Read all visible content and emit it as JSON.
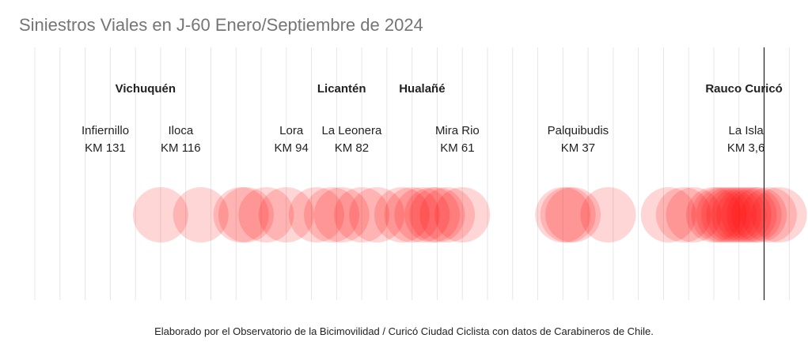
{
  "title": "Siniestros Viales en J-60 Enero/Septiembre de 2024",
  "caption": "Elaborado por el Observatorio de la Bicimovilidad / Curicó Ciudad Ciclista con datos de Carabineros de Chile.",
  "colors": {
    "bubble": "#ff0000",
    "grid": "#e6e6e6",
    "marker_line": "#000000",
    "title": "#757575",
    "label": "#222222"
  },
  "chart_data": {
    "type": "scatter",
    "xlabel": "",
    "ylabel": "",
    "x_unit": "KM",
    "x_axis_direction": "reversed",
    "xlim": [
      148,
      -7
    ],
    "grid": true,
    "legend": "none",
    "reference_line_km": 0,
    "communes": [
      {
        "name": "Vichuquén",
        "km": 123
      },
      {
        "name": "Licantén",
        "km": 84
      },
      {
        "name": "Hualañé",
        "km": 68
      },
      {
        "name": "Rauco Curicó",
        "km": 4
      }
    ],
    "places": [
      {
        "name": "Infiernillo",
        "km_label": "KM 131",
        "km": 131
      },
      {
        "name": "Iloca",
        "km_label": "KM 116",
        "km": 116
      },
      {
        "name": "Lora",
        "km_label": "KM 94",
        "km": 94
      },
      {
        "name": "La Leonera",
        "km_label": "KM 82",
        "km": 82
      },
      {
        "name": "Mira Rio",
        "km_label": "KM 61",
        "km": 61
      },
      {
        "name": "Palquibudis",
        "km_label": "KM 37",
        "km": 37
      },
      {
        "name": "La Isla",
        "km_label": "KM 3,6",
        "km": 3.6
      }
    ],
    "accidents_km": [
      120,
      112,
      104,
      103,
      99,
      95,
      89,
      86,
      84,
      80,
      77,
      72,
      70,
      68,
      66,
      65,
      63,
      60,
      40,
      39,
      38,
      31,
      19,
      16,
      14,
      10,
      9,
      8,
      7,
      6,
      5,
      4,
      3,
      2,
      1,
      -1,
      -3
    ]
  }
}
